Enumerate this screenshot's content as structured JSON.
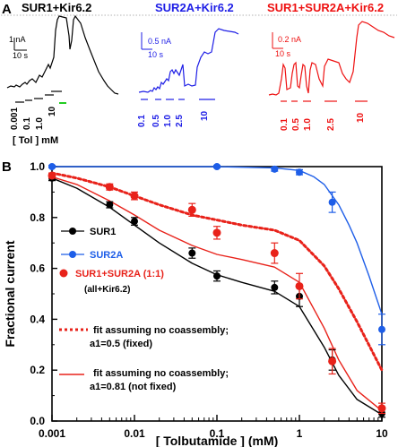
{
  "panel_a": {
    "letter": "A",
    "traces": [
      {
        "title": "SUR1+Kir6.2",
        "color": "#000000",
        "scale_current": "1 nA",
        "scale_time": "10 s",
        "doses": [
          "0.001",
          "0.1",
          "1.0",
          "10"
        ],
        "unit_label": "[ Tol ] mM"
      },
      {
        "title": "SUR2A+Kir6.2",
        "color": "#1e1ee6",
        "scale_current": "0.5 nA",
        "scale_time": "10 s",
        "doses": [
          "0.1",
          "0.5",
          "1.0",
          "2.5",
          "10"
        ]
      },
      {
        "title": "SUR1+SUR2A+Kir6.2",
        "color": "#ee1111",
        "scale_current": "0.2 nA",
        "scale_time": "10 s",
        "doses": [
          "0.1",
          "0.5",
          "1.0",
          "2.5",
          "10"
        ]
      }
    ]
  },
  "panel_b": {
    "letter": "B"
  },
  "colors": {
    "sur1": "#000000",
    "sur2a": "#1e5ee8",
    "sur1_sur2a": "#e8221a",
    "green_bar": "#22cc22"
  },
  "chart_data": {
    "type": "scatter",
    "xlabel": "[ Tolbutamide ] (mM)",
    "ylabel": "Fractional current",
    "xscale": "log",
    "xlim": [
      0.001,
      10
    ],
    "ylim": [
      0.0,
      1.0
    ],
    "x_ticks": [
      "0.001",
      "0.01",
      "0.1",
      "1",
      "10"
    ],
    "y_ticks": [
      "0.0",
      "0.2",
      "0.4",
      "0.6",
      "0.8",
      "1.0"
    ],
    "grid": false,
    "legend_position": "left-middle",
    "legend_note": "(all+Kir6.2)",
    "series": [
      {
        "name": "SUR1",
        "color": "#000000",
        "points": [
          {
            "x": 0.001,
            "y": 0.955,
            "err": 0.01
          },
          {
            "x": 0.005,
            "y": 0.85,
            "err": 0.012
          },
          {
            "x": 0.01,
            "y": 0.785,
            "err": 0.015
          },
          {
            "x": 0.05,
            "y": 0.66,
            "err": 0.02
          },
          {
            "x": 0.1,
            "y": 0.57,
            "err": 0.02
          },
          {
            "x": 0.5,
            "y": 0.525,
            "err": 0.025
          },
          {
            "x": 1,
            "y": 0.49,
            "err": 0.04
          },
          {
            "x": 2.5,
            "y": 0.24,
            "err": 0.04
          },
          {
            "x": 10,
            "y": 0.03,
            "err": 0.015
          }
        ],
        "fit": [
          [
            0.001,
            0.955
          ],
          [
            0.002,
            0.915
          ],
          [
            0.005,
            0.84
          ],
          [
            0.01,
            0.77
          ],
          [
            0.02,
            0.7
          ],
          [
            0.05,
            0.62
          ],
          [
            0.1,
            0.575
          ],
          [
            0.2,
            0.545
          ],
          [
            0.5,
            0.51
          ],
          [
            1,
            0.45
          ],
          [
            2,
            0.29
          ],
          [
            3,
            0.18
          ],
          [
            5,
            0.085
          ],
          [
            10,
            0.025
          ]
        ]
      },
      {
        "name": "SUR2A",
        "color": "#1e5ee8",
        "points": [
          {
            "x": 0.001,
            "y": 1.0,
            "err": 0.005
          },
          {
            "x": 0.1,
            "y": 1.0,
            "err": 0.005
          },
          {
            "x": 0.5,
            "y": 0.99,
            "err": 0.008
          },
          {
            "x": 1,
            "y": 0.978,
            "err": 0.01
          },
          {
            "x": 2.5,
            "y": 0.86,
            "err": 0.04
          },
          {
            "x": 10,
            "y": 0.36,
            "err": 0.06
          }
        ],
        "fit": [
          [
            0.001,
            1.0
          ],
          [
            0.1,
            1.0
          ],
          [
            0.5,
            0.995
          ],
          [
            1,
            0.985
          ],
          [
            1.5,
            0.96
          ],
          [
            2,
            0.93
          ],
          [
            3,
            0.85
          ],
          [
            4,
            0.77
          ],
          [
            5,
            0.7
          ],
          [
            7,
            0.57
          ],
          [
            10,
            0.42
          ]
        ]
      },
      {
        "name": "SUR1+SUR2A (1:1)",
        "color": "#e8221a",
        "points": [
          {
            "x": 0.001,
            "y": 0.965,
            "err": 0.01
          },
          {
            "x": 0.005,
            "y": 0.92,
            "err": 0.012
          },
          {
            "x": 0.01,
            "y": 0.885,
            "err": 0.015
          },
          {
            "x": 0.05,
            "y": 0.83,
            "err": 0.025
          },
          {
            "x": 0.1,
            "y": 0.74,
            "err": 0.025
          },
          {
            "x": 0.5,
            "y": 0.66,
            "err": 0.04
          },
          {
            "x": 1,
            "y": 0.53,
            "err": 0.05
          },
          {
            "x": 2.5,
            "y": 0.235,
            "err": 0.05
          },
          {
            "x": 10,
            "y": 0.05,
            "err": 0.02
          }
        ]
      }
    ],
    "fit_curves": [
      {
        "name": "fit assuming no coassembly; a1=0.5 (fixed)",
        "label_lines": [
          "fit assuming no coassembly;",
          "a1=0.5 (fixed)"
        ],
        "color": "#e8221a",
        "style": "dotted",
        "points": [
          [
            0.001,
            0.975
          ],
          [
            0.002,
            0.955
          ],
          [
            0.005,
            0.92
          ],
          [
            0.01,
            0.885
          ],
          [
            0.02,
            0.85
          ],
          [
            0.05,
            0.81
          ],
          [
            0.1,
            0.79
          ],
          [
            0.2,
            0.77
          ],
          [
            0.5,
            0.75
          ],
          [
            1,
            0.71
          ],
          [
            2,
            0.61
          ],
          [
            3,
            0.52
          ],
          [
            5,
            0.39
          ],
          [
            10,
            0.2
          ]
        ]
      },
      {
        "name": "fit assuming no coassembly; a1=0.81 (not fixed)",
        "label_lines": [
          "fit assuming no coassembly;",
          "a1=0.81 (not fixed)"
        ],
        "color": "#e8221a",
        "style": "solid",
        "points": [
          [
            0.001,
            0.96
          ],
          [
            0.002,
            0.93
          ],
          [
            0.005,
            0.865
          ],
          [
            0.01,
            0.81
          ],
          [
            0.02,
            0.75
          ],
          [
            0.05,
            0.69
          ],
          [
            0.1,
            0.655
          ],
          [
            0.2,
            0.635
          ],
          [
            0.5,
            0.605
          ],
          [
            1,
            0.545
          ],
          [
            2,
            0.365
          ],
          [
            3,
            0.24
          ],
          [
            5,
            0.12
          ],
          [
            10,
            0.04
          ]
        ]
      }
    ]
  }
}
